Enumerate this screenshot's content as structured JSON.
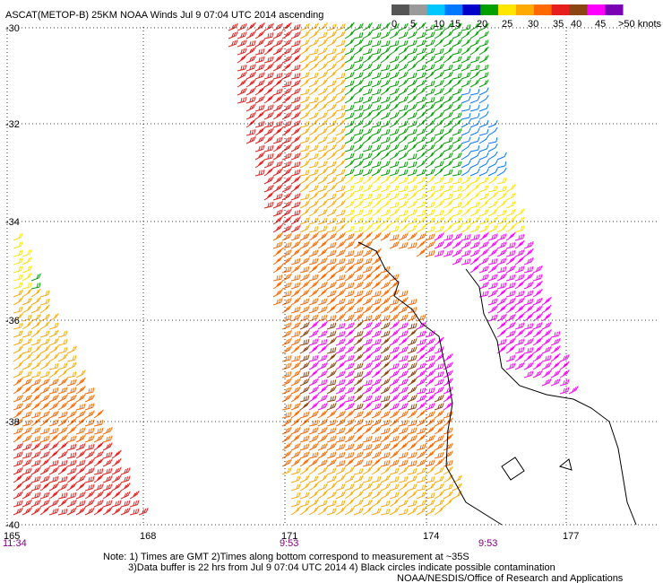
{
  "title": "ASCAT(METOP-B) 25KM NOAA Winds Jul  9 07:04 UTC 2014 ascending",
  "legend": {
    "labels": [
      "0",
      "5",
      "10",
      "15",
      "20",
      "25",
      "30",
      "35",
      "40",
      "45",
      ">50 knots"
    ],
    "colors": [
      "#555555",
      "#9a9a9a",
      "#00c8ff",
      "#0078ff",
      "#0000c8",
      "#00a000",
      "#ffe600",
      "#ffaa00",
      "#ff6a00",
      "#e61e1e",
      "#8b4513",
      "#ff00ff",
      "#7a00b4"
    ]
  },
  "lat_labels": [
    "-30",
    "-32",
    "-34",
    "-36",
    "-38",
    "-40"
  ],
  "lon_labels": [
    "165",
    "168",
    "171",
    "174",
    "177"
  ],
  "time_labels": [
    "11:34",
    "9:53",
    "9:53"
  ],
  "notes": [
    "Note: 1) Times are GMT 2)Times along bottom correspond to measurement at ~35S",
    "3)Data buffer is 22 hrs from Jul  9 07:04 UTC 2014 4) Black circles indicate possible contamination",
    "NOAA/NESDIS/Office of Research and Applications"
  ]
}
